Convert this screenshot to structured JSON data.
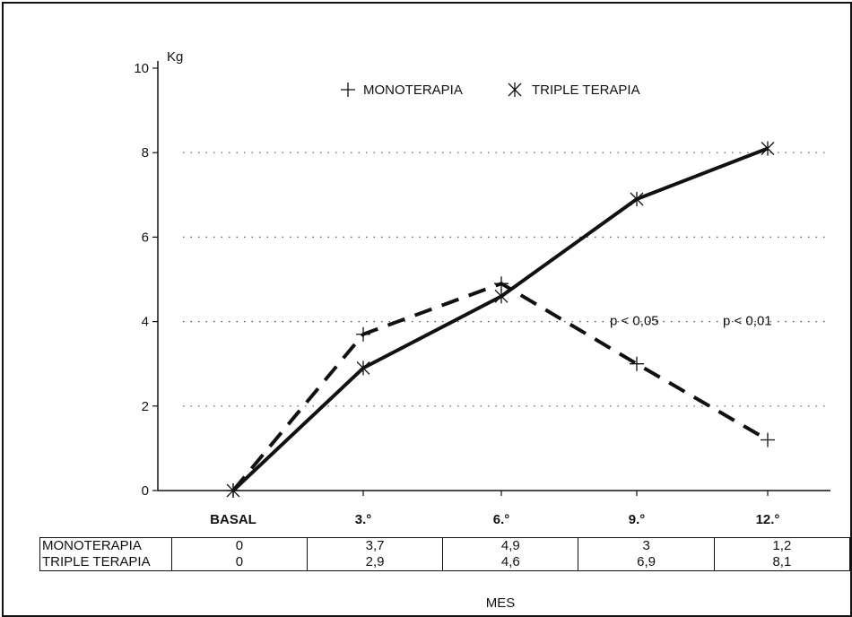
{
  "chart_data": {
    "type": "line",
    "ylabel": "Kg",
    "xlabel": "MES",
    "ylim": [
      0,
      10
    ],
    "yticks": [
      "0",
      "2",
      "4",
      "6",
      "8",
      "10"
    ],
    "categories": [
      "BASAL",
      "3.°",
      "6.°",
      "9.°",
      "12.°"
    ],
    "series": [
      {
        "name": "MONOTERAPIA",
        "values": [
          0,
          3.7,
          4.9,
          3,
          1.2
        ],
        "labels": [
          "0",
          "3,7",
          "4,9",
          "3",
          "1,2"
        ],
        "style": "dashed",
        "marker": "plus"
      },
      {
        "name": "TRIPLE TERAPIA",
        "values": [
          0,
          2.9,
          4.6,
          6.9,
          8.1
        ],
        "labels": [
          "0",
          "2,9",
          "4,6",
          "6,9",
          "8,1"
        ],
        "style": "solid",
        "marker": "asterisk"
      }
    ],
    "annotations": [
      {
        "text": "p < 0,05",
        "category": "9.°",
        "value": 4.0
      },
      {
        "text": "p < 0,01",
        "category": "12.°",
        "value": 4.0
      }
    ],
    "grid": "dotted horizontal at 2, 4, 6, 8",
    "legend": "top-center",
    "colors": {
      "line": "#111111",
      "grid": "#555555"
    }
  }
}
